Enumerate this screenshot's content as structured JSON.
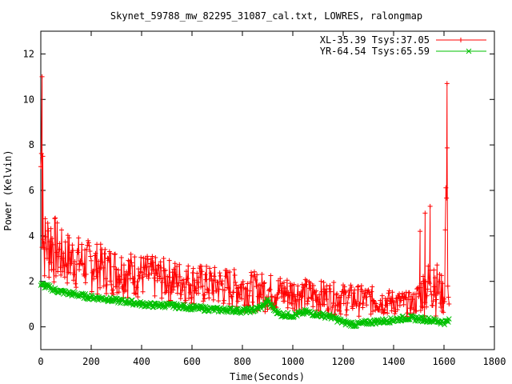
{
  "chart_data": {
    "type": "line",
    "title": "Skynet_59788_mw_82295_31087_cal.txt, LOWRES, ralongmap",
    "xlabel": "Time(Seconds)",
    "ylabel": "Power (Kelvin)",
    "xlim": [
      0,
      1800
    ],
    "ylim": [
      -1,
      13
    ],
    "xticks": [
      0,
      200,
      400,
      600,
      800,
      1000,
      1200,
      1400,
      1600,
      1800
    ],
    "yticks": [
      0,
      2,
      4,
      6,
      8,
      10,
      12
    ],
    "grid": false,
    "legend_position": "top-right",
    "series": [
      {
        "name": "XL-35.39 Tsys:37.05",
        "color": "#ff0000",
        "marker": "plus",
        "baseline": [
          [
            0,
            1.9
          ],
          [
            40,
            1.7
          ],
          [
            150,
            1.5
          ],
          [
            300,
            1.3
          ],
          [
            500,
            1.05
          ],
          [
            700,
            0.8
          ],
          [
            900,
            0.6
          ],
          [
            1100,
            0.5
          ],
          [
            1300,
            0.45
          ],
          [
            1450,
            0.45
          ],
          [
            1600,
            0.45
          ],
          [
            1620,
            0.45
          ]
        ],
        "envelope": [
          [
            0,
            11.0
          ],
          [
            5,
            11.0
          ],
          [
            10,
            5.0
          ],
          [
            40,
            5.3
          ],
          [
            80,
            4.3
          ],
          [
            150,
            4.0
          ],
          [
            250,
            3.6
          ],
          [
            400,
            3.2
          ],
          [
            500,
            3.0
          ],
          [
            600,
            2.8
          ],
          [
            800,
            2.5
          ],
          [
            1000,
            2.2
          ],
          [
            1200,
            1.9
          ],
          [
            1300,
            1.8
          ],
          [
            1400,
            1.6
          ],
          [
            1480,
            1.5
          ],
          [
            1520,
            2.6
          ],
          [
            1560,
            3.2
          ],
          [
            1600,
            2.0
          ],
          [
            1610,
            10.7
          ],
          [
            1620,
            1.4
          ]
        ],
        "spikes": [
          [
            5,
            11.0
          ],
          [
            8,
            7.5
          ],
          [
            1505,
            4.2
          ],
          [
            1525,
            5.0
          ],
          [
            1545,
            5.3
          ],
          [
            1560,
            2.5
          ],
          [
            1612,
            10.7
          ]
        ]
      },
      {
        "name": "YR-64.54 Tsys:65.59",
        "color": "#00c000",
        "marker": "x",
        "points": [
          [
            0,
            1.85
          ],
          [
            30,
            1.75
          ],
          [
            60,
            1.6
          ],
          [
            100,
            1.5
          ],
          [
            150,
            1.4
          ],
          [
            200,
            1.3
          ],
          [
            250,
            1.25
          ],
          [
            300,
            1.15
          ],
          [
            350,
            1.1
          ],
          [
            400,
            1.0
          ],
          [
            450,
            0.95
          ],
          [
            500,
            0.95
          ],
          [
            550,
            0.9
          ],
          [
            600,
            0.85
          ],
          [
            650,
            0.8
          ],
          [
            700,
            0.75
          ],
          [
            750,
            0.75
          ],
          [
            800,
            0.7
          ],
          [
            850,
            0.75
          ],
          [
            880,
            0.9
          ],
          [
            900,
            1.15
          ],
          [
            920,
            0.85
          ],
          [
            950,
            0.55
          ],
          [
            1000,
            0.5
          ],
          [
            1050,
            0.65
          ],
          [
            1100,
            0.55
          ],
          [
            1150,
            0.45
          ],
          [
            1200,
            0.2
          ],
          [
            1250,
            0.1
          ],
          [
            1300,
            0.2
          ],
          [
            1350,
            0.25
          ],
          [
            1400,
            0.3
          ],
          [
            1450,
            0.4
          ],
          [
            1500,
            0.35
          ],
          [
            1550,
            0.3
          ],
          [
            1600,
            0.2
          ],
          [
            1620,
            0.25
          ]
        ]
      }
    ]
  }
}
